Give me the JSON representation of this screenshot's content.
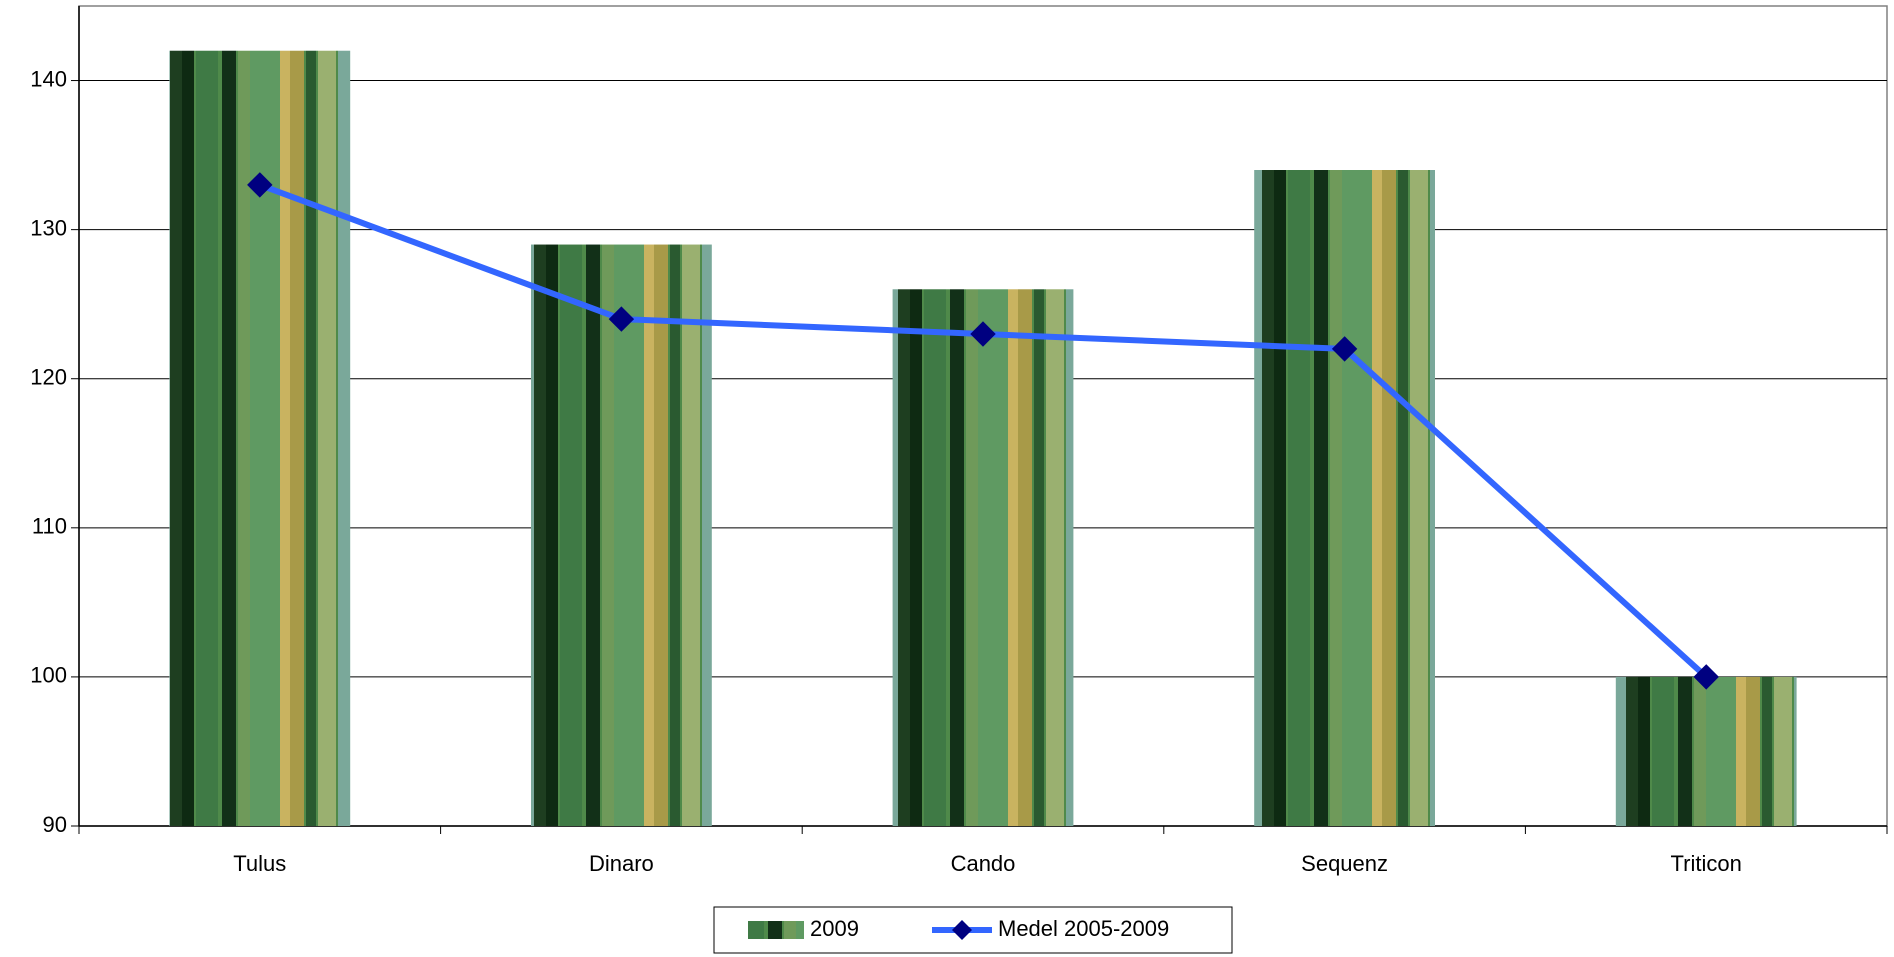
{
  "chart_data": {
    "type": "bar",
    "categories": [
      "Tulus",
      "Dinaro",
      "Cando",
      "Sequenz",
      "Triticon"
    ],
    "series": [
      {
        "name": "2009",
        "type": "bar",
        "color": "#5a8a45",
        "values": [
          142,
          129,
          126,
          134,
          100
        ]
      },
      {
        "name": "Medel 2005-2009",
        "type": "line",
        "color": "#3366ff",
        "marker_color": "#000080",
        "values": [
          133,
          124,
          123,
          122,
          100
        ]
      }
    ],
    "ylim": [
      90,
      145
    ],
    "yticks": [
      90,
      100,
      110,
      120,
      130,
      140
    ],
    "grid": true,
    "legend": "bottom"
  }
}
